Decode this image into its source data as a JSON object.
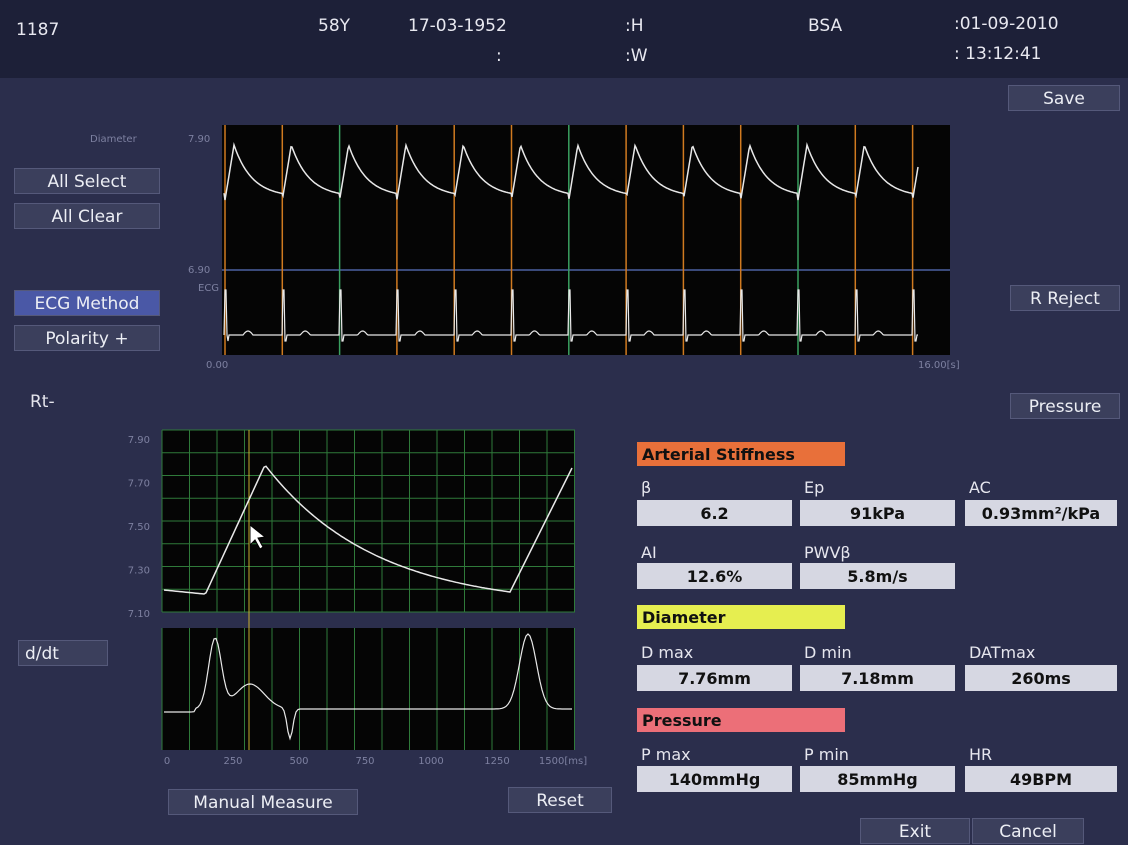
{
  "header": {
    "id": "1187",
    "age": "58Y",
    "dob": "17-03-1952",
    "height": ":H",
    "sep": ":",
    "weight": ":W",
    "bsa": "BSA",
    "date": ":01-09-2010",
    "time": ": 13:12:41"
  },
  "buttons": {
    "save": "Save",
    "all_select": "All Select",
    "all_clear": "All Clear",
    "ecg_method": "ECG Method",
    "polarity": "Polarity +",
    "r_reject": "R Reject",
    "pressure": "Pressure",
    "manual_measure": "Manual Measure",
    "reset": "Reset",
    "exit": "Exit",
    "cancel": "Cancel"
  },
  "side_label": "Rt-",
  "dropdown": "d/dt",
  "top_chart": {
    "label_diameter": "Diameter",
    "label_ecg": "ECG",
    "y_max": "7.90",
    "y_min": "6.90",
    "x_start": "0.00",
    "x_end": "16.00[s]"
  },
  "bottom_chart": {
    "yticks": [
      "7.90",
      "7.70",
      "7.50",
      "7.30",
      "7.10"
    ],
    "xticks": [
      "0",
      "250",
      "500",
      "750",
      "1000",
      "1250",
      "1500[ms]"
    ]
  },
  "results": {
    "sections": [
      {
        "title": "Arterial Stiffness",
        "color": "#e8703a",
        "fields": [
          {
            "label": "β",
            "value": "6.2"
          },
          {
            "label": "Ep",
            "value": "91kPa"
          },
          {
            "label": "AC",
            "value": "0.93mm²/kPa"
          },
          {
            "label": "AI",
            "value": "12.6%"
          },
          {
            "label": "PWVβ",
            "value": "5.8m/s"
          }
        ]
      },
      {
        "title": "Diameter",
        "color": "#e6ee50",
        "fields": [
          {
            "label": "D  max",
            "value": "7.76mm"
          },
          {
            "label": "D  min",
            "value": "7.18mm"
          },
          {
            "label": "DATmax",
            "value": "260ms"
          }
        ]
      },
      {
        "title": "Pressure",
        "color": "#ec6f78",
        "fields": [
          {
            "label": "P  max",
            "value": "140mmHg"
          },
          {
            "label": "P  min",
            "value": "85mmHg"
          },
          {
            "label": "HR",
            "value": "49BPM"
          }
        ]
      }
    ]
  }
}
